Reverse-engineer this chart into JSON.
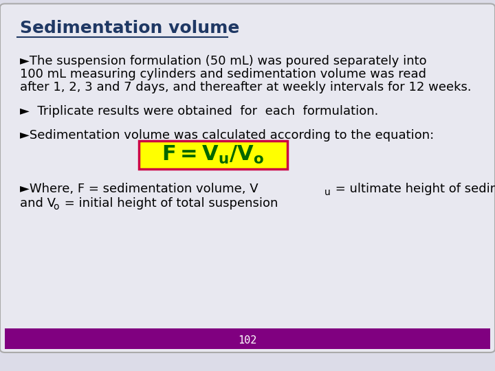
{
  "title": "Sedimentation volume",
  "title_color": "#1F3864",
  "title_fontsize": 18,
  "bg_color": "#E8E8F0",
  "slide_bg": "#DCDCE8",
  "bottom_bar_color": "#800080",
  "bottom_text": "102",
  "bottom_text_color": "#FFFFFF",
  "body_text_color": "#000000",
  "bullet1_line1": "►The suspension formulation (50 mL) was poured separately into",
  "bullet1_line2": "100 mL measuring cylinders and sedimentation volume was read",
  "bullet1_line3": "after 1, 2, 3 and 7 days, and thereafter at weekly intervals for 12 weeks.",
  "bullet2": "►  Triplicate results were obtained  for  each  formulation.",
  "bullet3": "►Sedimentation volume was calculated according to the equation:",
  "formula_bg": "#FFFF00",
  "formula_border": "#CC0044",
  "formula_text_color": "#006600",
  "where_line1": "►Where, F = sedimentation volume, V",
  "where_sub_u": "u",
  "where_mid": " = ultimate height of sediment",
  "where_line2": "and V",
  "where_sub_o": "o",
  "where_end": " = initial height of total suspension",
  "body_fontsize": 13,
  "formula_fontsize": 22
}
